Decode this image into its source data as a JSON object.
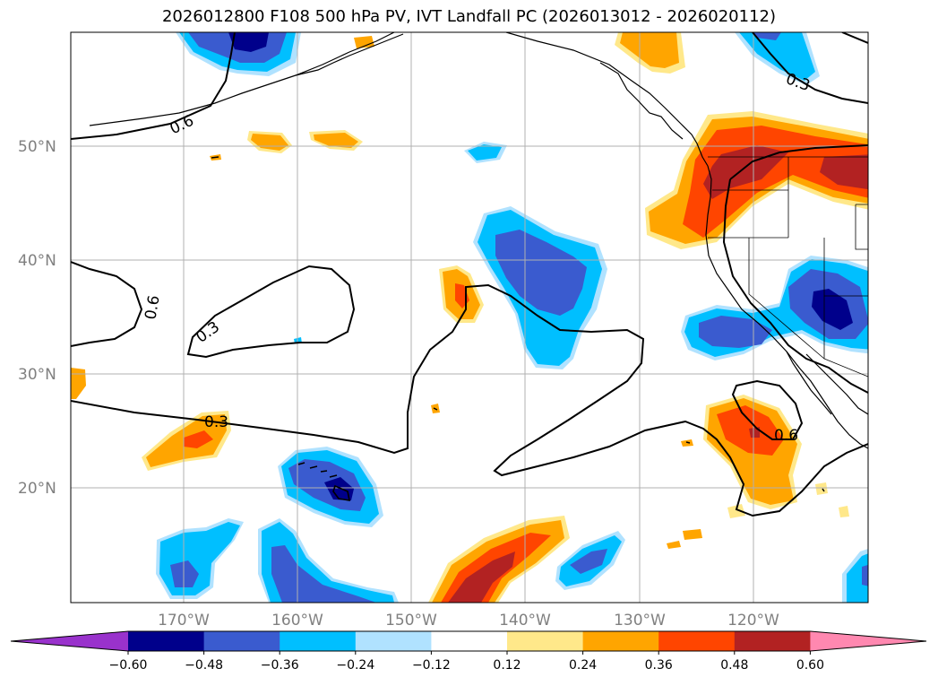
{
  "title": "2026012800 F108 500 hPa PV, IVT Landfall PC (2026013012 - 2026020112)",
  "lat_labels": [
    "50°N",
    "40°N",
    "30°N",
    "20°N"
  ],
  "lon_labels": [
    "170°W",
    "160°W",
    "150°W",
    "140°W",
    "130°W",
    "120°W"
  ],
  "contour_labels": [
    "0.6",
    "0.3",
    "0.6",
    "0.3",
    "0.3",
    "0.6"
  ],
  "colorbar": {
    "ticks": [
      "−0.60",
      "−0.48",
      "−0.36",
      "−0.24",
      "−0.12",
      "0.12",
      "0.24",
      "0.36",
      "0.48",
      "0.60"
    ],
    "colors": [
      "#9932cc",
      "#00008b",
      "#3a5bcf",
      "#00bfff",
      "#b0e2ff",
      "#ffffff",
      "#ffe88a",
      "#ffa500",
      "#ff4500",
      "#b22222",
      "#ff88b0"
    ]
  },
  "palette": {
    "dark_blue": "#00008b",
    "blue": "#3a5bcf",
    "cyan": "#00bfff",
    "light_blue": "#b0e2ff",
    "light_yellow": "#ffe88a",
    "orange": "#ffa500",
    "red_orange": "#ff4500",
    "dark_red": "#b22222",
    "grid": "#b0b0b0"
  }
}
